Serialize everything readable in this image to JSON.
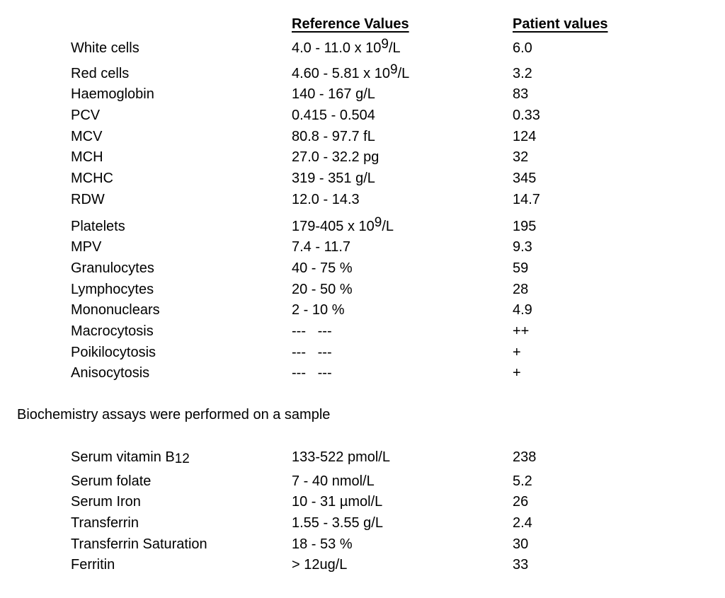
{
  "page": {
    "background": "#ffffff",
    "text_color": "#000000"
  },
  "haematology": {
    "headers": {
      "reference": "Reference Values",
      "patient": "Patient values"
    },
    "rows": [
      {
        "label": "White cells",
        "ref_pre": "4.0 - 11.0 x 10",
        "ref_sup": "9",
        "ref_post": "/L",
        "patient": "6.0"
      },
      {
        "label": "Red cells",
        "ref_pre": "4.60 - 5.81 x 10",
        "ref_sup": "9",
        "ref_post": "/L",
        "patient": "3.2"
      },
      {
        "label": "Haemoglobin",
        "ref_pre": "140 - 167 g/L",
        "ref_sup": "",
        "ref_post": "",
        "patient": "83"
      },
      {
        "label": "PCV",
        "ref_pre": "0.415 - 0.504",
        "ref_sup": "",
        "ref_post": "",
        "patient": "0.33"
      },
      {
        "label": "MCV",
        "ref_pre": "80.8 - 97.7 fL",
        "ref_sup": "",
        "ref_post": "",
        "patient": "124"
      },
      {
        "label": "MCH",
        "ref_pre": "27.0 - 32.2 pg",
        "ref_sup": "",
        "ref_post": "",
        "patient": "32"
      },
      {
        "label": "MCHC",
        "ref_pre": "319 - 351 g/L",
        "ref_sup": "",
        "ref_post": "",
        "patient": "345"
      },
      {
        "label": "RDW",
        "ref_pre": "12.0 - 14.3",
        "ref_sup": "",
        "ref_post": "",
        "patient": "14.7"
      },
      {
        "label": "Platelets",
        "ref_pre": "179-405 x 10",
        "ref_sup": "9",
        "ref_post": "/L",
        "patient": "195"
      },
      {
        "label": "MPV",
        "ref_pre": "7.4 - 11.7",
        "ref_sup": "",
        "ref_post": "",
        "patient": "9.3"
      },
      {
        "label": "Granulocytes",
        "ref_pre": "40 - 75 %",
        "ref_sup": "",
        "ref_post": "",
        "patient": "59"
      },
      {
        "label": "Lymphocytes",
        "ref_pre": "20 - 50 %",
        "ref_sup": "",
        "ref_post": "",
        "patient": "28"
      },
      {
        "label": "Mononuclears",
        "ref_pre": "2 - 10 %",
        "ref_sup": "",
        "ref_post": "",
        "patient": "4.9"
      },
      {
        "label": "Macrocytosis",
        "ref_pre": "---   ---",
        "ref_sup": "",
        "ref_post": "",
        "patient": "++"
      },
      {
        "label": "Poikilocytosis",
        "ref_pre": "---   ---",
        "ref_sup": "",
        "ref_post": "",
        "patient": "+"
      },
      {
        "label": "Anisocytosis",
        "ref_pre": "---   ---",
        "ref_sup": "",
        "ref_post": "",
        "patient": "+"
      }
    ]
  },
  "note": {
    "text": "Biochemistry assays were performed on a sample"
  },
  "biochemistry": {
    "rows": [
      {
        "label_pre": "Serum vitamin B",
        "label_sub": "12",
        "ref": "133-522 pmol/L",
        "patient": "238"
      },
      {
        "label_pre": "Serum folate",
        "label_sub": "",
        "ref": "7 - 40 nmol/L",
        "patient": "5.2"
      },
      {
        "label_pre": "Serum Iron",
        "label_sub": "",
        "ref": "10 - 31 µmol/L",
        "patient": "26"
      },
      {
        "label_pre": "Transferrin",
        "label_sub": "",
        "ref": "1.55 - 3.55 g/L",
        "patient": "2.4"
      },
      {
        "label_pre": "Transferrin Saturation",
        "label_sub": "",
        "ref": "18 - 53 %",
        "patient": "30"
      },
      {
        "label_pre": "Ferritin",
        "label_sub": "",
        "ref": "> 12ug/L",
        "patient": "33"
      }
    ]
  }
}
